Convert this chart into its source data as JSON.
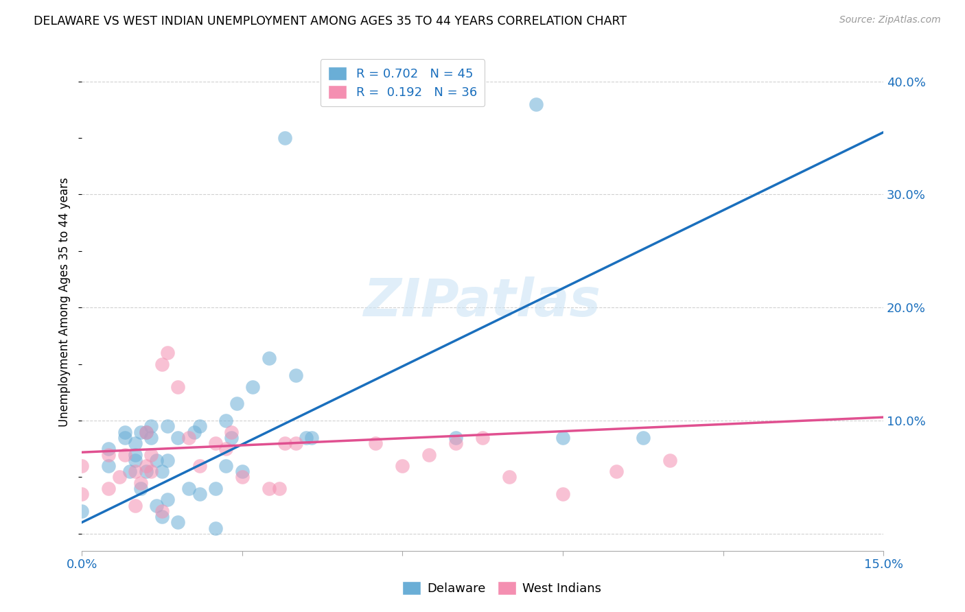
{
  "title": "DELAWARE VS WEST INDIAN UNEMPLOYMENT AMONG AGES 35 TO 44 YEARS CORRELATION CHART",
  "source": "Source: ZipAtlas.com",
  "ylabel": "Unemployment Among Ages 35 to 44 years",
  "xlim": [
    0.0,
    0.15
  ],
  "ylim": [
    -0.015,
    0.425
  ],
  "x_ticks": [
    0.0,
    0.03,
    0.06,
    0.09,
    0.12,
    0.15
  ],
  "x_tick_labels": [
    "0.0%",
    "",
    "",
    "",
    "",
    "15.0%"
  ],
  "y_ticks_right": [
    0.0,
    0.1,
    0.2,
    0.3,
    0.4
  ],
  "y_tick_labels_right": [
    "",
    "10.0%",
    "20.0%",
    "30.0%",
    "40.0%"
  ],
  "delaware_color": "#6aaed6",
  "west_indian_color": "#f48fb1",
  "delaware_line_color": "#1a6fbd",
  "west_indian_line_color": "#e05090",
  "delaware_line_x0": 0.0,
  "delaware_line_y0": 0.01,
  "delaware_line_x1": 0.15,
  "delaware_line_y1": 0.355,
  "wi_line_x0": 0.0,
  "wi_line_y0": 0.072,
  "wi_line_x1": 0.15,
  "wi_line_y1": 0.103,
  "watermark": "ZIPatlas",
  "legend_del_label": "R = 0.702   N = 45",
  "legend_wi_label": "R =  0.192   N = 36",
  "bottom_legend_del": "Delaware",
  "bottom_legend_wi": "West Indians",
  "delaware_x": [
    0.0,
    0.005,
    0.005,
    0.008,
    0.008,
    0.009,
    0.01,
    0.01,
    0.01,
    0.011,
    0.011,
    0.012,
    0.012,
    0.013,
    0.013,
    0.014,
    0.014,
    0.015,
    0.015,
    0.016,
    0.016,
    0.016,
    0.018,
    0.018,
    0.02,
    0.021,
    0.022,
    0.022,
    0.025,
    0.025,
    0.027,
    0.027,
    0.028,
    0.029,
    0.03,
    0.032,
    0.035,
    0.038,
    0.04,
    0.042,
    0.043,
    0.07,
    0.085,
    0.09,
    0.105
  ],
  "delaware_y": [
    0.02,
    0.06,
    0.075,
    0.085,
    0.09,
    0.055,
    0.065,
    0.07,
    0.08,
    0.04,
    0.09,
    0.055,
    0.09,
    0.085,
    0.095,
    0.025,
    0.065,
    0.015,
    0.055,
    0.03,
    0.065,
    0.095,
    0.01,
    0.085,
    0.04,
    0.09,
    0.035,
    0.095,
    0.005,
    0.04,
    0.06,
    0.1,
    0.085,
    0.115,
    0.055,
    0.13,
    0.155,
    0.35,
    0.14,
    0.085,
    0.085,
    0.085,
    0.38,
    0.085,
    0.085
  ],
  "west_indian_x": [
    0.0,
    0.0,
    0.005,
    0.005,
    0.007,
    0.008,
    0.01,
    0.01,
    0.011,
    0.012,
    0.012,
    0.013,
    0.013,
    0.015,
    0.015,
    0.016,
    0.018,
    0.02,
    0.022,
    0.025,
    0.027,
    0.028,
    0.03,
    0.035,
    0.037,
    0.038,
    0.04,
    0.055,
    0.06,
    0.065,
    0.07,
    0.075,
    0.08,
    0.09,
    0.1,
    0.11
  ],
  "west_indian_y": [
    0.035,
    0.06,
    0.04,
    0.07,
    0.05,
    0.07,
    0.025,
    0.055,
    0.045,
    0.06,
    0.09,
    0.055,
    0.07,
    0.02,
    0.15,
    0.16,
    0.13,
    0.085,
    0.06,
    0.08,
    0.075,
    0.09,
    0.05,
    0.04,
    0.04,
    0.08,
    0.08,
    0.08,
    0.06,
    0.07,
    0.08,
    0.085,
    0.05,
    0.035,
    0.055,
    0.065
  ],
  "background_color": "#ffffff",
  "grid_color": "#d0d0d0"
}
